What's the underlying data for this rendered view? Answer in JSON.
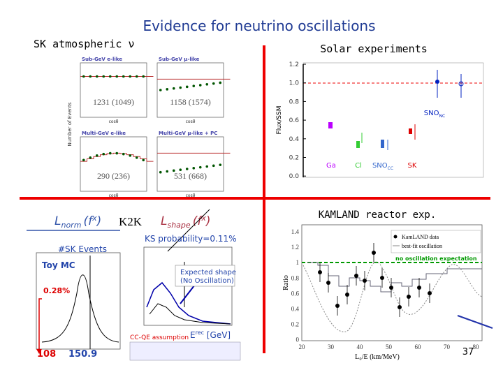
{
  "header": {
    "title": "Evidence for neutrino oscillations",
    "page_number": "37"
  },
  "atmospheric": {
    "label": "SK atmospheric ν",
    "panels": [
      {
        "title": "Sub-GeV e-like",
        "counts": "1231 (1049)"
      },
      {
        "title": "Sub-GeV μ-like",
        "counts": "1158 (1574)"
      },
      {
        "title": "Multi-GeV e-like",
        "counts": "290 (236)"
      },
      {
        "title": "Multi-GeV μ-like + PC",
        "counts": "531 (668)"
      }
    ],
    "y_axis": "Number of Events",
    "x_axis": "cosθ"
  },
  "solar": {
    "label": "Solar experiments",
    "y_axis": "Flux/SSM",
    "yticks": [
      "1.2",
      "1.0",
      "0.8",
      "0.6",
      "0.4",
      "0.2",
      "0.0"
    ],
    "experiments": [
      "Ga",
      "Cl",
      "SNO",
      "SK",
      "SNO"
    ],
    "subscripts": [
      "",
      "",
      "CC",
      "",
      "NC"
    ]
  },
  "k2k": {
    "label": "K2K",
    "l_norm": "L",
    "l_norm_sub": "norm",
    "l_shape": "L",
    "l_shape_sub": "shape",
    "fx": "(f",
    "fx_sup": "x",
    "fx_close": ")",
    "sk_events": "#SK Events",
    "toy_mc": "Toy MC",
    "probability": "0.28%",
    "observed": "108",
    "expected": "150.9",
    "ks": "KS probability=0.11%",
    "expected_shape": [
      "Expected shape",
      "(No Oscillation)"
    ],
    "erec": "E",
    "erec_sup": "rec",
    "erec_unit": " [GeV]",
    "ccqe": "CC-QE assumption"
  },
  "kamland": {
    "label": "KAMLAND reactor exp.",
    "y_axis": "Ratio",
    "yticks": [
      "1.4",
      "1.2",
      "1",
      "0.8",
      "0.6",
      "0.4",
      "0.2",
      "0"
    ],
    "xticks": [
      "20",
      "30",
      "40",
      "50",
      "60",
      "70",
      "80"
    ],
    "x_axis": "L₀/E (km/MeV)",
    "no_osc": "no oscillation expectation",
    "legend": [
      "KamLAND data",
      "best-fit oscillation"
    ]
  }
}
